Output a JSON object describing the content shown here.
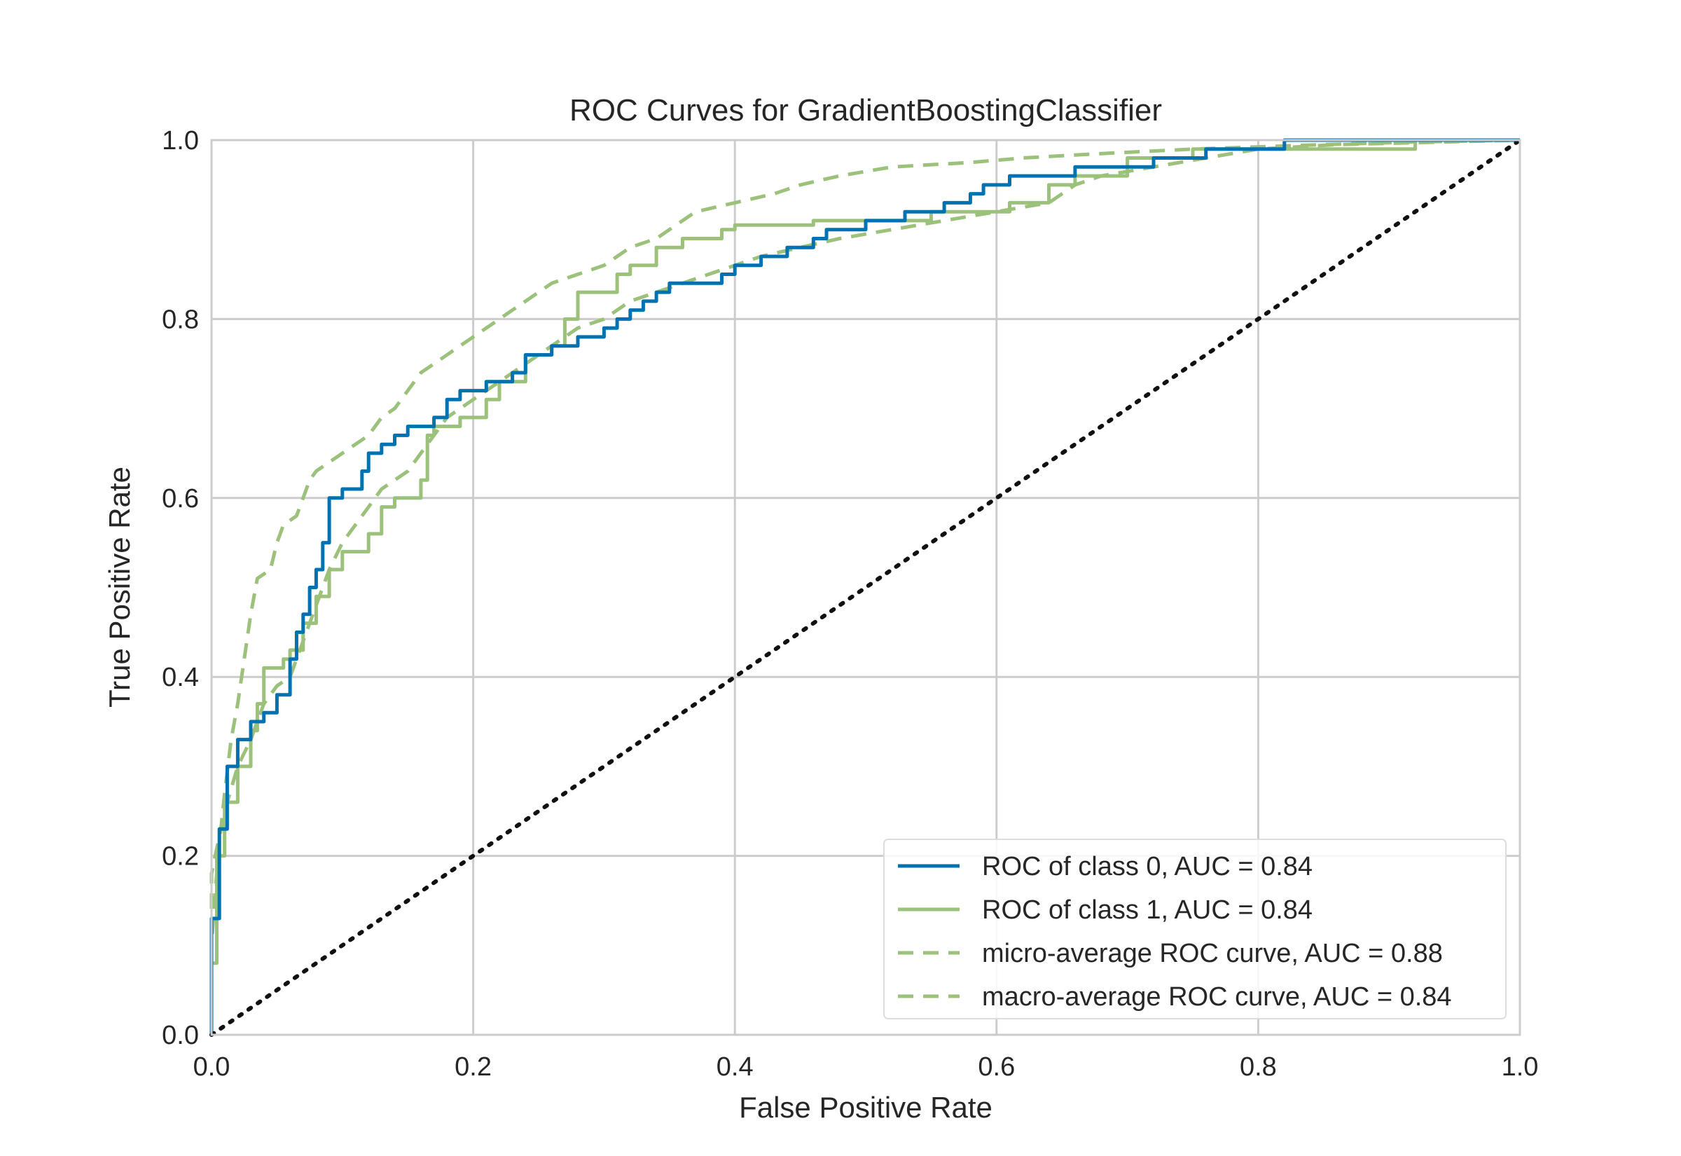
{
  "chart_data": {
    "type": "line",
    "title": "ROC Curves for GradientBoostingClassifier",
    "xlabel": "False Positive Rate",
    "ylabel": "True Positive Rate",
    "xlim": [
      0.0,
      1.0
    ],
    "ylim": [
      0.0,
      1.0
    ],
    "xticks": [
      "0.0",
      "0.2",
      "0.4",
      "0.6",
      "0.8",
      "1.0"
    ],
    "yticks": [
      "0.0",
      "0.2",
      "0.4",
      "0.6",
      "0.8",
      "1.0"
    ],
    "grid": true,
    "legend_position": "lower right",
    "series": [
      {
        "name": "ROC of class 0, AUC = 0.84",
        "color": "#0072B2",
        "style": "solid",
        "points": [
          [
            0.0,
            0.0
          ],
          [
            0.0,
            0.13
          ],
          [
            0.006,
            0.13
          ],
          [
            0.006,
            0.23
          ],
          [
            0.012,
            0.23
          ],
          [
            0.012,
            0.3
          ],
          [
            0.02,
            0.3
          ],
          [
            0.02,
            0.33
          ],
          [
            0.03,
            0.33
          ],
          [
            0.03,
            0.35
          ],
          [
            0.04,
            0.35
          ],
          [
            0.04,
            0.36
          ],
          [
            0.05,
            0.36
          ],
          [
            0.05,
            0.38
          ],
          [
            0.06,
            0.38
          ],
          [
            0.06,
            0.42
          ],
          [
            0.065,
            0.42
          ],
          [
            0.065,
            0.45
          ],
          [
            0.07,
            0.45
          ],
          [
            0.07,
            0.47
          ],
          [
            0.075,
            0.47
          ],
          [
            0.075,
            0.5
          ],
          [
            0.08,
            0.5
          ],
          [
            0.08,
            0.52
          ],
          [
            0.085,
            0.52
          ],
          [
            0.085,
            0.55
          ],
          [
            0.09,
            0.55
          ],
          [
            0.09,
            0.6
          ],
          [
            0.1,
            0.6
          ],
          [
            0.1,
            0.61
          ],
          [
            0.115,
            0.61
          ],
          [
            0.115,
            0.63
          ],
          [
            0.12,
            0.63
          ],
          [
            0.12,
            0.65
          ],
          [
            0.13,
            0.65
          ],
          [
            0.13,
            0.66
          ],
          [
            0.14,
            0.66
          ],
          [
            0.14,
            0.67
          ],
          [
            0.15,
            0.67
          ],
          [
            0.15,
            0.68
          ],
          [
            0.17,
            0.68
          ],
          [
            0.17,
            0.69
          ],
          [
            0.18,
            0.69
          ],
          [
            0.18,
            0.71
          ],
          [
            0.19,
            0.71
          ],
          [
            0.19,
            0.72
          ],
          [
            0.21,
            0.72
          ],
          [
            0.21,
            0.73
          ],
          [
            0.23,
            0.73
          ],
          [
            0.23,
            0.74
          ],
          [
            0.24,
            0.74
          ],
          [
            0.24,
            0.76
          ],
          [
            0.26,
            0.76
          ],
          [
            0.26,
            0.77
          ],
          [
            0.28,
            0.77
          ],
          [
            0.28,
            0.78
          ],
          [
            0.3,
            0.78
          ],
          [
            0.3,
            0.79
          ],
          [
            0.31,
            0.79
          ],
          [
            0.31,
            0.8
          ],
          [
            0.32,
            0.8
          ],
          [
            0.32,
            0.81
          ],
          [
            0.33,
            0.81
          ],
          [
            0.33,
            0.82
          ],
          [
            0.34,
            0.82
          ],
          [
            0.34,
            0.83
          ],
          [
            0.35,
            0.83
          ],
          [
            0.35,
            0.84
          ],
          [
            0.38,
            0.84
          ],
          [
            0.39,
            0.84
          ],
          [
            0.39,
            0.85
          ],
          [
            0.4,
            0.85
          ],
          [
            0.4,
            0.86
          ],
          [
            0.42,
            0.86
          ],
          [
            0.42,
            0.87
          ],
          [
            0.44,
            0.87
          ],
          [
            0.44,
            0.88
          ],
          [
            0.46,
            0.88
          ],
          [
            0.46,
            0.89
          ],
          [
            0.47,
            0.89
          ],
          [
            0.47,
            0.9
          ],
          [
            0.5,
            0.9
          ],
          [
            0.5,
            0.91
          ],
          [
            0.53,
            0.91
          ],
          [
            0.53,
            0.92
          ],
          [
            0.56,
            0.92
          ],
          [
            0.56,
            0.93
          ],
          [
            0.58,
            0.93
          ],
          [
            0.58,
            0.94
          ],
          [
            0.59,
            0.94
          ],
          [
            0.59,
            0.95
          ],
          [
            0.61,
            0.95
          ],
          [
            0.61,
            0.96
          ],
          [
            0.66,
            0.96
          ],
          [
            0.66,
            0.97
          ],
          [
            0.72,
            0.97
          ],
          [
            0.72,
            0.98
          ],
          [
            0.76,
            0.98
          ],
          [
            0.76,
            0.99
          ],
          [
            0.82,
            0.99
          ],
          [
            0.82,
            1.0
          ],
          [
            1.0,
            1.0
          ]
        ]
      },
      {
        "name": "ROC of class 1, AUC = 0.84",
        "color": "#9BC17A",
        "style": "solid",
        "points": [
          [
            0.0,
            0.0
          ],
          [
            0.0,
            0.08
          ],
          [
            0.004,
            0.08
          ],
          [
            0.004,
            0.2
          ],
          [
            0.01,
            0.2
          ],
          [
            0.01,
            0.26
          ],
          [
            0.02,
            0.26
          ],
          [
            0.02,
            0.3
          ],
          [
            0.03,
            0.3
          ],
          [
            0.03,
            0.34
          ],
          [
            0.035,
            0.34
          ],
          [
            0.035,
            0.37
          ],
          [
            0.04,
            0.37
          ],
          [
            0.04,
            0.41
          ],
          [
            0.055,
            0.41
          ],
          [
            0.055,
            0.42
          ],
          [
            0.06,
            0.42
          ],
          [
            0.06,
            0.43
          ],
          [
            0.07,
            0.43
          ],
          [
            0.07,
            0.46
          ],
          [
            0.08,
            0.46
          ],
          [
            0.08,
            0.49
          ],
          [
            0.09,
            0.49
          ],
          [
            0.09,
            0.52
          ],
          [
            0.1,
            0.52
          ],
          [
            0.1,
            0.54
          ],
          [
            0.12,
            0.54
          ],
          [
            0.12,
            0.56
          ],
          [
            0.13,
            0.56
          ],
          [
            0.13,
            0.59
          ],
          [
            0.14,
            0.59
          ],
          [
            0.14,
            0.6
          ],
          [
            0.16,
            0.6
          ],
          [
            0.16,
            0.62
          ],
          [
            0.165,
            0.62
          ],
          [
            0.165,
            0.67
          ],
          [
            0.17,
            0.67
          ],
          [
            0.17,
            0.68
          ],
          [
            0.19,
            0.68
          ],
          [
            0.19,
            0.69
          ],
          [
            0.21,
            0.69
          ],
          [
            0.21,
            0.71
          ],
          [
            0.22,
            0.71
          ],
          [
            0.22,
            0.73
          ],
          [
            0.24,
            0.73
          ],
          [
            0.24,
            0.76
          ],
          [
            0.26,
            0.76
          ],
          [
            0.26,
            0.77
          ],
          [
            0.27,
            0.77
          ],
          [
            0.27,
            0.8
          ],
          [
            0.28,
            0.8
          ],
          [
            0.28,
            0.83
          ],
          [
            0.31,
            0.83
          ],
          [
            0.31,
            0.85
          ],
          [
            0.32,
            0.85
          ],
          [
            0.32,
            0.86
          ],
          [
            0.34,
            0.86
          ],
          [
            0.34,
            0.88
          ],
          [
            0.36,
            0.88
          ],
          [
            0.36,
            0.89
          ],
          [
            0.39,
            0.89
          ],
          [
            0.39,
            0.9
          ],
          [
            0.4,
            0.9
          ],
          [
            0.4,
            0.905
          ],
          [
            0.46,
            0.905
          ],
          [
            0.46,
            0.91
          ],
          [
            0.55,
            0.91
          ],
          [
            0.55,
            0.92
          ],
          [
            0.61,
            0.92
          ],
          [
            0.61,
            0.93
          ],
          [
            0.64,
            0.93
          ],
          [
            0.64,
            0.95
          ],
          [
            0.66,
            0.95
          ],
          [
            0.66,
            0.96
          ],
          [
            0.7,
            0.96
          ],
          [
            0.7,
            0.98
          ],
          [
            0.75,
            0.98
          ],
          [
            0.75,
            0.99
          ],
          [
            0.92,
            0.99
          ],
          [
            0.92,
            1.0
          ],
          [
            1.0,
            1.0
          ]
        ]
      },
      {
        "name": "micro-average ROC curve, AUC = 0.88",
        "color": "#9BC17A",
        "style": "dashed",
        "points": [
          [
            0.0,
            0.0
          ],
          [
            0.0,
            0.1
          ],
          [
            0.005,
            0.2
          ],
          [
            0.01,
            0.27
          ],
          [
            0.015,
            0.33
          ],
          [
            0.02,
            0.37
          ],
          [
            0.025,
            0.42
          ],
          [
            0.03,
            0.47
          ],
          [
            0.035,
            0.51
          ],
          [
            0.045,
            0.52
          ],
          [
            0.05,
            0.55
          ],
          [
            0.055,
            0.57
          ],
          [
            0.065,
            0.58
          ],
          [
            0.07,
            0.6
          ],
          [
            0.075,
            0.62
          ],
          [
            0.08,
            0.63
          ],
          [
            0.09,
            0.64
          ],
          [
            0.1,
            0.65
          ],
          [
            0.11,
            0.66
          ],
          [
            0.12,
            0.67
          ],
          [
            0.13,
            0.69
          ],
          [
            0.14,
            0.7
          ],
          [
            0.15,
            0.72
          ],
          [
            0.16,
            0.74
          ],
          [
            0.17,
            0.75
          ],
          [
            0.18,
            0.76
          ],
          [
            0.19,
            0.77
          ],
          [
            0.2,
            0.78
          ],
          [
            0.21,
            0.79
          ],
          [
            0.22,
            0.8
          ],
          [
            0.23,
            0.81
          ],
          [
            0.24,
            0.82
          ],
          [
            0.25,
            0.83
          ],
          [
            0.26,
            0.84
          ],
          [
            0.28,
            0.85
          ],
          [
            0.3,
            0.86
          ],
          [
            0.31,
            0.87
          ],
          [
            0.32,
            0.88
          ],
          [
            0.34,
            0.89
          ],
          [
            0.35,
            0.9
          ],
          [
            0.36,
            0.91
          ],
          [
            0.37,
            0.92
          ],
          [
            0.4,
            0.93
          ],
          [
            0.43,
            0.94
          ],
          [
            0.45,
            0.95
          ],
          [
            0.48,
            0.96
          ],
          [
            0.52,
            0.97
          ],
          [
            0.58,
            0.975
          ],
          [
            0.62,
            0.98
          ],
          [
            0.68,
            0.985
          ],
          [
            0.75,
            0.99
          ],
          [
            0.85,
            0.995
          ],
          [
            0.92,
            0.998
          ],
          [
            1.0,
            1.0
          ]
        ]
      },
      {
        "name": "macro-average ROC curve, AUC = 0.84",
        "color": "#9BC17A",
        "style": "dashed",
        "points": [
          [
            0.0,
            0.0
          ],
          [
            0.0,
            0.18
          ],
          [
            0.01,
            0.25
          ],
          [
            0.02,
            0.3
          ],
          [
            0.03,
            0.33
          ],
          [
            0.04,
            0.37
          ],
          [
            0.05,
            0.39
          ],
          [
            0.06,
            0.4
          ],
          [
            0.07,
            0.44
          ],
          [
            0.08,
            0.48
          ],
          [
            0.09,
            0.52
          ],
          [
            0.1,
            0.55
          ],
          [
            0.11,
            0.57
          ],
          [
            0.12,
            0.59
          ],
          [
            0.13,
            0.61
          ],
          [
            0.14,
            0.62
          ],
          [
            0.15,
            0.63
          ],
          [
            0.16,
            0.65
          ],
          [
            0.17,
            0.67
          ],
          [
            0.18,
            0.69
          ],
          [
            0.19,
            0.7
          ],
          [
            0.2,
            0.71
          ],
          [
            0.21,
            0.72
          ],
          [
            0.22,
            0.73
          ],
          [
            0.24,
            0.75
          ],
          [
            0.26,
            0.77
          ],
          [
            0.28,
            0.79
          ],
          [
            0.3,
            0.8
          ],
          [
            0.32,
            0.82
          ],
          [
            0.34,
            0.83
          ],
          [
            0.36,
            0.84
          ],
          [
            0.38,
            0.85
          ],
          [
            0.4,
            0.86
          ],
          [
            0.42,
            0.87
          ],
          [
            0.45,
            0.88
          ],
          [
            0.48,
            0.89
          ],
          [
            0.52,
            0.9
          ],
          [
            0.56,
            0.91
          ],
          [
            0.6,
            0.92
          ],
          [
            0.64,
            0.93
          ],
          [
            0.66,
            0.95
          ],
          [
            0.68,
            0.96
          ],
          [
            0.72,
            0.97
          ],
          [
            0.76,
            0.98
          ],
          [
            0.8,
            0.99
          ],
          [
            0.86,
            0.995
          ],
          [
            1.0,
            1.0
          ]
        ]
      },
      {
        "name": "",
        "color": "#111111",
        "style": "dotted",
        "points": [
          [
            0.0,
            0.0
          ],
          [
            1.0,
            1.0
          ]
        ]
      }
    ]
  }
}
